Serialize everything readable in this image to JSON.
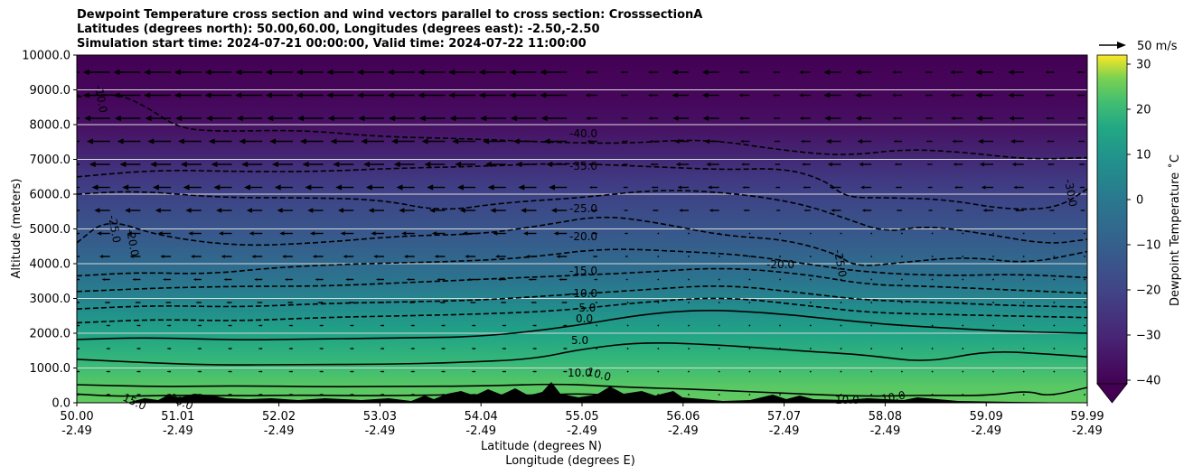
{
  "title_lines": [
    "Dewpoint Temperature cross section and wind vectors parallel to cross section: CrosssectionA",
    "Latitudes (degrees north): 50.00,60.00, Longitudes (degrees east): -2.50,-2.50",
    "Simulation start time: 2024-07-21 00:00:00, Valid time: 2024-07-22 11:00:00"
  ],
  "chart_data": {
    "type": "heatmap",
    "xlabel_lines": [
      "Latitude (degrees N)",
      "Longitude (degrees E)"
    ],
    "ylabel": "Altitude (meters)",
    "ylim": [
      0,
      10000
    ],
    "y_ticks": [
      "0.0",
      "1000.0",
      "2000.0",
      "3000.0",
      "4000.0",
      "5000.0",
      "6000.0",
      "7000.0",
      "8000.0",
      "9000.0",
      "10000.0"
    ],
    "x_range": [
      50.0,
      59.99
    ],
    "x_ticks": [
      {
        "lat": "50.00",
        "lon": "-2.49"
      },
      {
        "lat": "51.01",
        "lon": "-2.49"
      },
      {
        "lat": "52.02",
        "lon": "-2.49"
      },
      {
        "lat": "53.03",
        "lon": "-2.49"
      },
      {
        "lat": "54.04",
        "lon": "-2.49"
      },
      {
        "lat": "55.05",
        "lon": "-2.49"
      },
      {
        "lat": "56.06",
        "lon": "-2.49"
      },
      {
        "lat": "57.07",
        "lon": "-2.49"
      },
      {
        "lat": "58.08",
        "lon": "-2.49"
      },
      {
        "lat": "59.09",
        "lon": "-2.49"
      },
      {
        "lat": "59.99",
        "lon": "-2.49"
      }
    ],
    "grid": "horizontal",
    "colorbar": {
      "label": "Dewpoint Temperature ˚C",
      "ticks": [
        "−40",
        "−30",
        "−20",
        "−10",
        "0",
        "10",
        "20",
        "30"
      ],
      "range": [
        -45,
        32
      ],
      "colormap": "viridis",
      "extend": "min"
    },
    "quiver_key": "50 m/s",
    "contour_levels": [
      15,
      10,
      5,
      0,
      -5,
      -10,
      -15,
      -20,
      -25,
      -30,
      -35,
      -40
    ],
    "contour_labels": [
      "-40.0",
      "-35.0",
      "-25.0",
      "-20.0",
      "-15.0",
      "-10.0",
      "-5.0",
      "0.0",
      "5.0",
      "10.0",
      "10.0",
      "15.0",
      "15.0",
      "10.0",
      "10.0",
      "-10.0",
      "-25.0",
      "-20.0",
      "-25.0",
      "-30.0",
      "-20.0"
    ],
    "contours_m": [
      {
        "level": 15,
        "style": "solid",
        "points": [
          [
            50.0,
            250
          ],
          [
            50.4,
            180
          ],
          [
            51.0,
            220
          ],
          [
            51.6,
            200
          ],
          [
            52.2,
            220
          ],
          [
            53.0,
            200
          ],
          [
            53.8,
            230
          ],
          [
            54.5,
            210
          ],
          [
            55.0,
            270
          ],
          [
            55.4,
            180
          ]
        ]
      },
      {
        "level": 10,
        "style": "solid",
        "points": [
          [
            50.0,
            520
          ],
          [
            50.8,
            460
          ],
          [
            51.6,
            490
          ],
          [
            52.4,
            460
          ],
          [
            53.2,
            470
          ],
          [
            54.0,
            480
          ],
          [
            54.8,
            550
          ],
          [
            55.4,
            450
          ],
          [
            56.2,
            380
          ],
          [
            57.0,
            270
          ],
          [
            57.8,
            180
          ],
          [
            58.4,
            220
          ],
          [
            59.0,
            200
          ],
          [
            59.4,
            350
          ],
          [
            59.6,
            180
          ],
          [
            59.99,
            440
          ]
        ]
      },
      {
        "level": 5,
        "style": "solid",
        "points": [
          [
            50.0,
            1250
          ],
          [
            50.7,
            1150
          ],
          [
            51.4,
            1080
          ],
          [
            52.2,
            1100
          ],
          [
            53.0,
            1100
          ],
          [
            53.8,
            1160
          ],
          [
            54.5,
            1250
          ],
          [
            55.0,
            1550
          ],
          [
            55.6,
            1750
          ],
          [
            56.4,
            1660
          ],
          [
            57.2,
            1480
          ],
          [
            57.8,
            1380
          ],
          [
            58.4,
            1150
          ],
          [
            59.0,
            1500
          ],
          [
            59.6,
            1400
          ],
          [
            59.99,
            1320
          ]
        ]
      },
      {
        "level": 0,
        "style": "solid",
        "points": [
          [
            50.0,
            1820
          ],
          [
            50.7,
            1880
          ],
          [
            51.6,
            1800
          ],
          [
            52.4,
            1840
          ],
          [
            53.2,
            1860
          ],
          [
            54.0,
            1900
          ],
          [
            54.8,
            2150
          ],
          [
            55.6,
            2550
          ],
          [
            56.2,
            2680
          ],
          [
            56.8,
            2600
          ],
          [
            57.4,
            2430
          ],
          [
            58.0,
            2250
          ],
          [
            58.6,
            2150
          ],
          [
            59.2,
            2050
          ],
          [
            59.99,
            2000
          ]
        ]
      },
      {
        "level": -5,
        "style": "dashed",
        "points": [
          [
            50.0,
            2300
          ],
          [
            50.8,
            2400
          ],
          [
            51.6,
            2350
          ],
          [
            52.4,
            2450
          ],
          [
            53.2,
            2500
          ],
          [
            54.0,
            2550
          ],
          [
            54.8,
            2650
          ],
          [
            55.6,
            2900
          ],
          [
            56.4,
            3050
          ],
          [
            57.2,
            2800
          ],
          [
            57.8,
            2600
          ],
          [
            58.4,
            2550
          ],
          [
            59.2,
            2500
          ],
          [
            59.99,
            2450
          ]
        ]
      },
      {
        "level": -10,
        "style": "dashed",
        "points": [
          [
            50.0,
            2700
          ],
          [
            50.8,
            2800
          ],
          [
            51.6,
            2750
          ],
          [
            52.4,
            2850
          ],
          [
            53.2,
            2900
          ],
          [
            54.0,
            2950
          ],
          [
            54.8,
            3100
          ],
          [
            55.6,
            3250
          ],
          [
            56.4,
            3400
          ],
          [
            57.2,
            3150
          ],
          [
            57.8,
            2950
          ],
          [
            58.4,
            2900
          ],
          [
            59.2,
            2800
          ],
          [
            59.99,
            2750
          ]
        ]
      },
      {
        "level": -15,
        "style": "dashed",
        "points": [
          [
            50.0,
            3200
          ],
          [
            50.8,
            3300
          ],
          [
            51.6,
            3350
          ],
          [
            52.4,
            3350
          ],
          [
            53.2,
            3450
          ],
          [
            54.0,
            3550
          ],
          [
            54.8,
            3650
          ],
          [
            55.6,
            3750
          ],
          [
            56.4,
            3900
          ],
          [
            57.2,
            3700
          ],
          [
            57.8,
            3400
          ],
          [
            58.4,
            3350
          ],
          [
            59.2,
            3250
          ],
          [
            59.99,
            3150
          ]
        ]
      },
      {
        "level": -20,
        "style": "dashed",
        "points": [
          [
            50.0,
            3650
          ],
          [
            50.6,
            3750
          ],
          [
            51.3,
            3700
          ],
          [
            52.0,
            3900
          ],
          [
            52.8,
            4000
          ],
          [
            53.6,
            4050
          ],
          [
            54.4,
            4150
          ],
          [
            55.2,
            4450
          ],
          [
            56.0,
            4350
          ],
          [
            56.6,
            4250
          ],
          [
            57.2,
            4000
          ],
          [
            57.8,
            3750
          ],
          [
            58.6,
            3650
          ],
          [
            59.3,
            3700
          ],
          [
            59.99,
            3600
          ]
        ]
      },
      {
        "level": -25,
        "style": "dashed",
        "points": [
          [
            50.0,
            4600
          ],
          [
            50.3,
            5300
          ],
          [
            50.8,
            4800
          ],
          [
            51.6,
            4500
          ],
          [
            52.4,
            4600
          ],
          [
            53.2,
            4800
          ],
          [
            54.0,
            4850
          ],
          [
            54.6,
            5100
          ],
          [
            55.2,
            5400
          ],
          [
            55.8,
            5150
          ],
          [
            56.4,
            4800
          ],
          [
            57.0,
            4700
          ],
          [
            57.5,
            4300
          ],
          [
            57.7,
            3900
          ],
          [
            58.2,
            4050
          ],
          [
            58.8,
            4200
          ],
          [
            59.4,
            4000
          ],
          [
            59.99,
            4350
          ]
        ]
      },
      {
        "level": -30,
        "style": "dashed",
        "points": [
          [
            50.0,
            6000
          ],
          [
            50.6,
            6100
          ],
          [
            51.4,
            5900
          ],
          [
            52.2,
            5900
          ],
          [
            53.0,
            5850
          ],
          [
            53.6,
            5500
          ],
          [
            54.2,
            5750
          ],
          [
            55.0,
            5900
          ],
          [
            55.8,
            6150
          ],
          [
            56.6,
            6000
          ],
          [
            57.2,
            5700
          ],
          [
            57.6,
            5300
          ],
          [
            58.0,
            4900
          ],
          [
            58.4,
            5100
          ],
          [
            59.0,
            4850
          ],
          [
            59.6,
            4550
          ],
          [
            59.99,
            4700
          ]
        ]
      },
      {
        "level": -35,
        "style": "dashed",
        "points": [
          [
            50.0,
            6500
          ],
          [
            50.8,
            6700
          ],
          [
            51.6,
            6650
          ],
          [
            52.4,
            6650
          ],
          [
            53.2,
            6750
          ],
          [
            54.0,
            6800
          ],
          [
            54.8,
            6900
          ],
          [
            55.6,
            6800
          ],
          [
            56.4,
            6700
          ],
          [
            57.0,
            6750
          ],
          [
            57.4,
            6400
          ],
          [
            57.6,
            5900
          ],
          [
            58.0,
            5900
          ],
          [
            58.6,
            5850
          ],
          [
            59.2,
            5550
          ],
          [
            59.7,
            5600
          ],
          [
            59.99,
            6150
          ]
        ]
      },
      {
        "level": -40,
        "style": "dashed",
        "points": [
          [
            50.0,
            8800
          ],
          [
            50.4,
            8900
          ],
          [
            50.7,
            8500
          ],
          [
            51.0,
            7900
          ],
          [
            51.4,
            7800
          ],
          [
            52.2,
            7850
          ],
          [
            53.0,
            7650
          ],
          [
            53.8,
            7600
          ],
          [
            54.6,
            7500
          ],
          [
            55.4,
            7450
          ],
          [
            56.2,
            7600
          ],
          [
            57.0,
            7250
          ],
          [
            57.6,
            7100
          ],
          [
            58.2,
            7300
          ],
          [
            58.8,
            7200
          ],
          [
            59.4,
            7000
          ],
          [
            59.99,
            7050
          ]
        ]
      }
    ]
  }
}
